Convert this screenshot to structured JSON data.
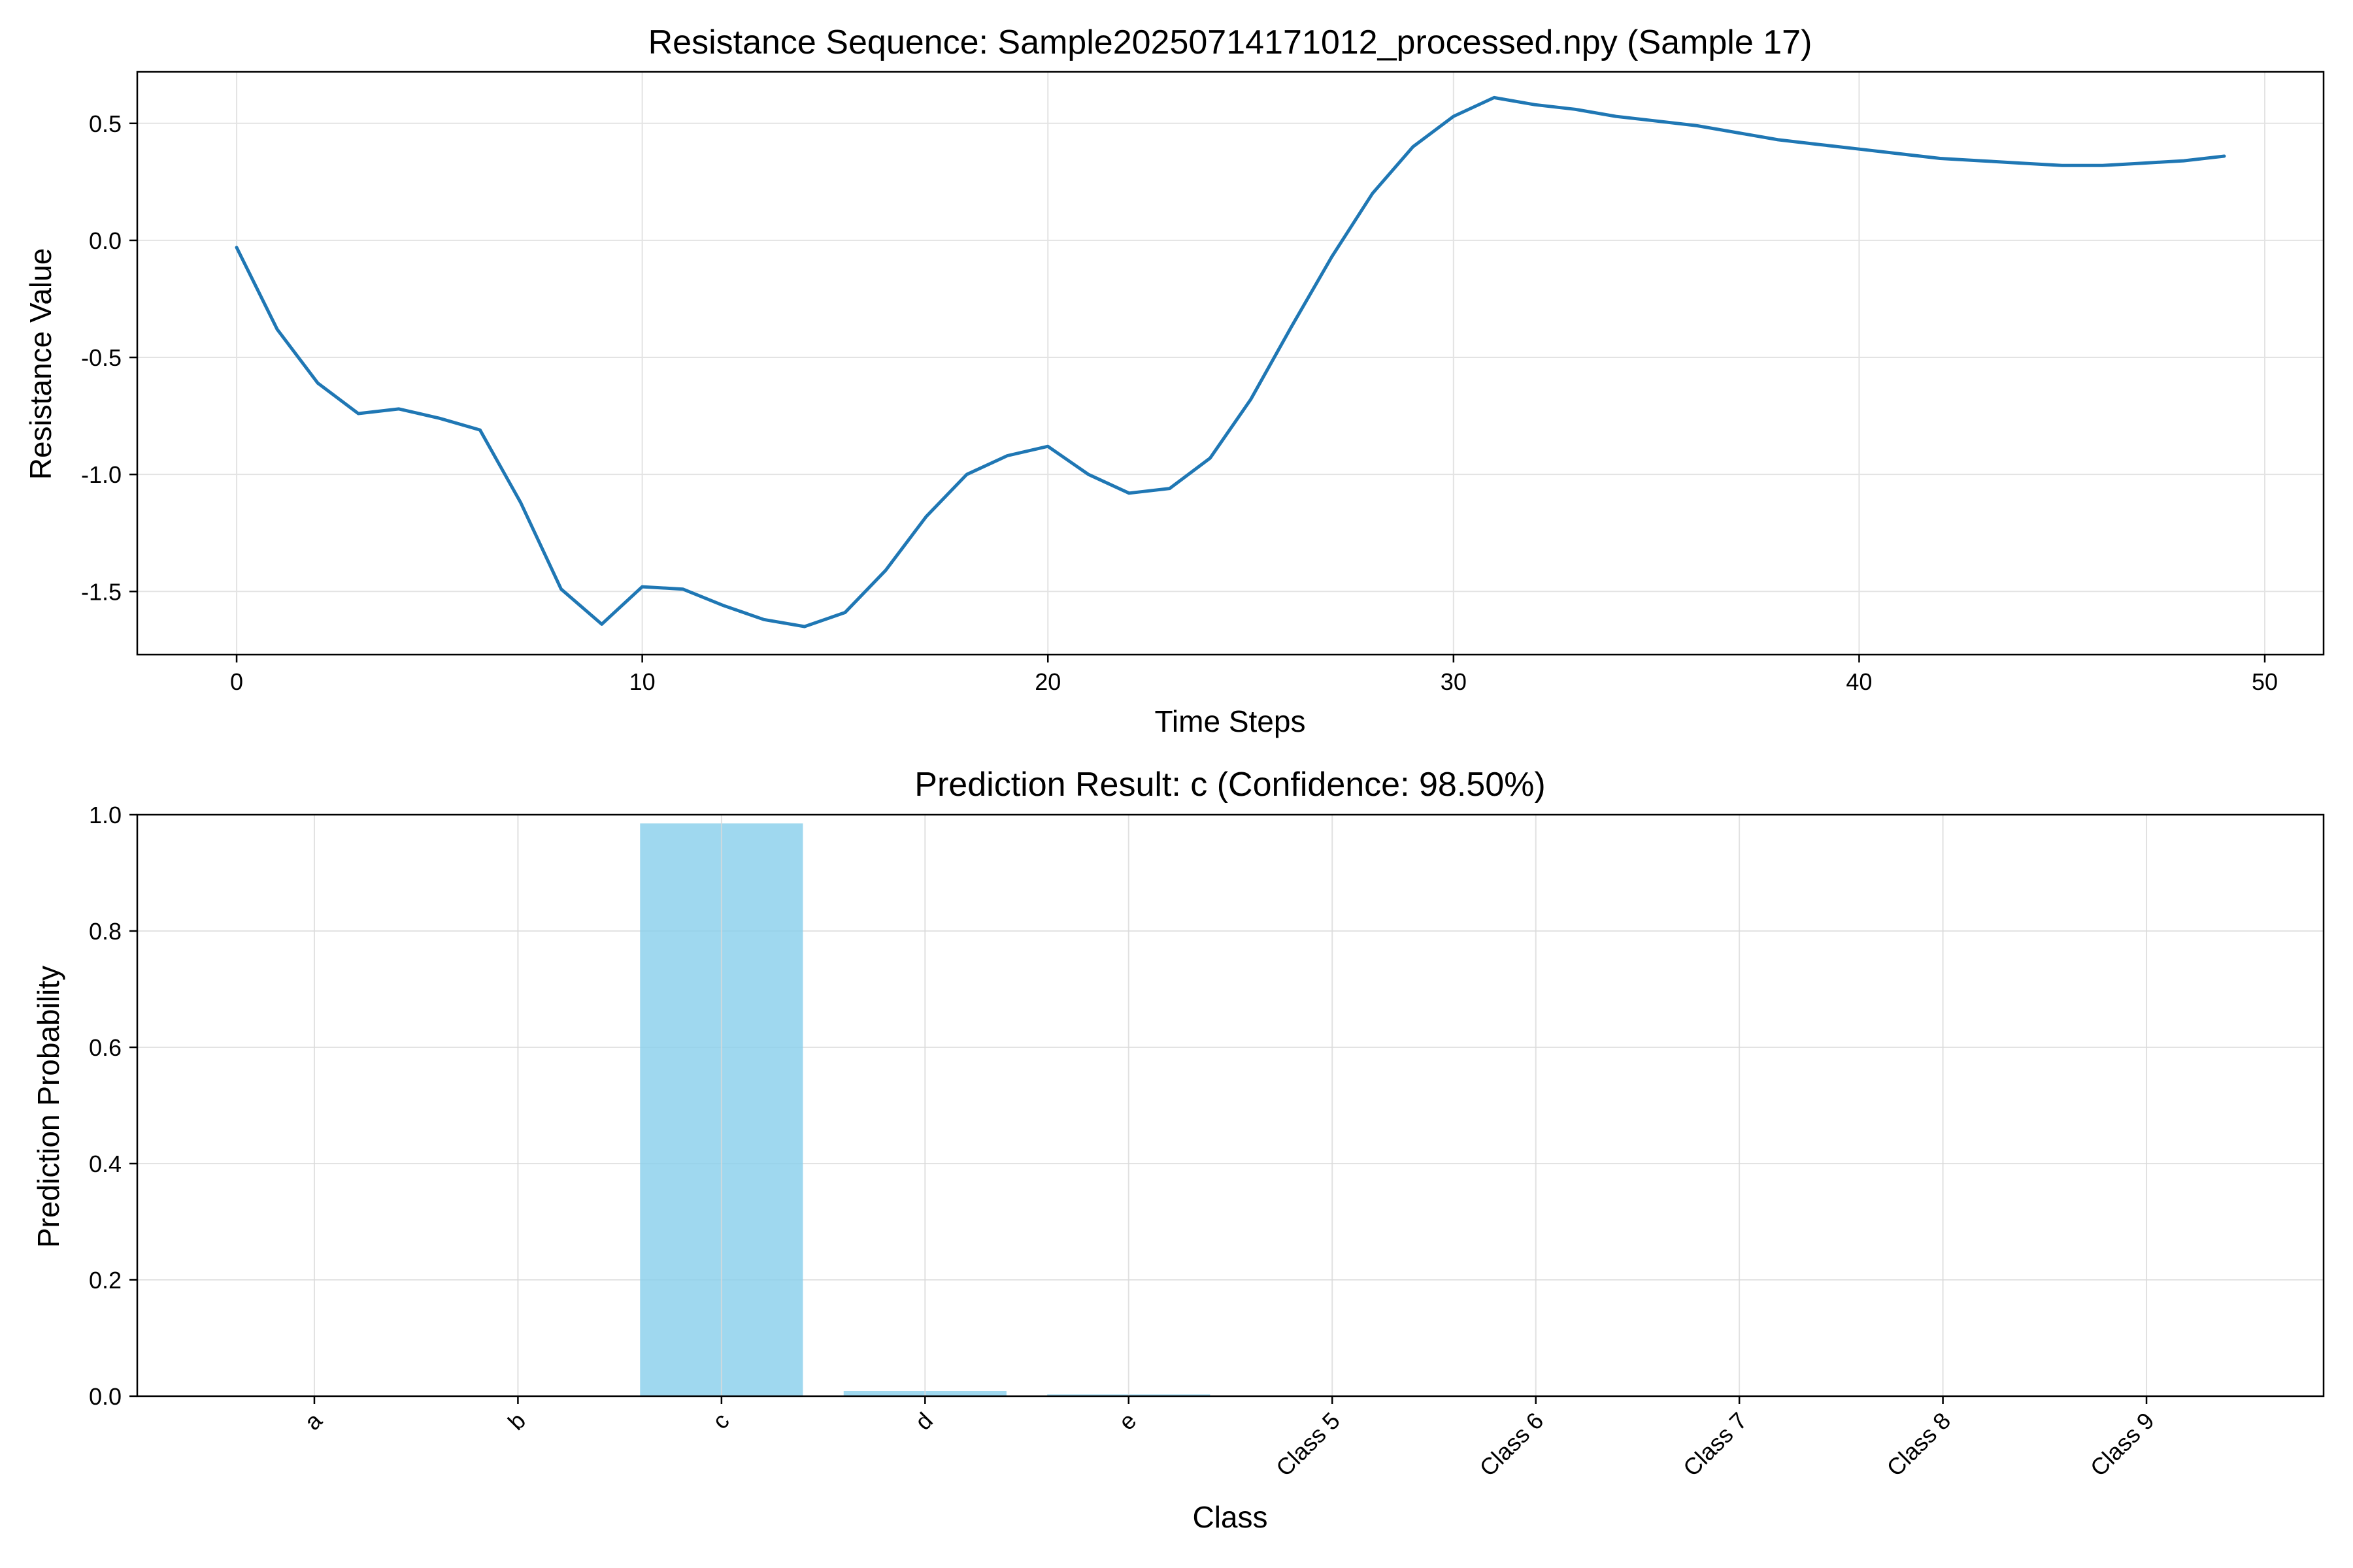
{
  "chart_data": [
    {
      "type": "line",
      "title": "Resistance Sequence: Sample20250714171012_processed.npy (Sample 17)",
      "xlabel": "Time Steps",
      "ylabel": "Resistance Value",
      "xlim": [
        -2.45,
        51.45
      ],
      "ylim": [
        -1.77,
        0.72
      ],
      "xticks": [
        0,
        10,
        20,
        30,
        40,
        50
      ],
      "yticks": [
        0.5,
        0.0,
        -0.5,
        -1.0,
        -1.5
      ],
      "ytick_labels": [
        "0.5",
        "0.0",
        "-0.5",
        "-1.0",
        "-1.5"
      ],
      "grid": true,
      "legend": "none",
      "line_color": "#1f77b4",
      "series": [
        {
          "x": [
            0,
            1,
            2,
            3,
            4,
            5,
            6,
            7,
            8,
            9,
            10,
            11,
            12,
            13,
            14,
            15,
            16,
            17,
            18,
            19,
            20,
            21,
            22,
            23,
            24,
            25,
            26,
            27,
            28,
            29,
            30,
            31,
            32,
            33,
            34,
            35,
            36,
            37,
            38,
            39,
            40,
            41,
            42,
            43,
            44,
            45,
            46,
            47,
            48,
            49
          ],
          "y": [
            -0.03,
            -0.38,
            -0.61,
            -0.74,
            -0.72,
            -0.76,
            -0.81,
            -1.12,
            -1.49,
            -1.64,
            -1.48,
            -1.49,
            -1.56,
            -1.62,
            -1.65,
            -1.59,
            -1.41,
            -1.18,
            -1.0,
            -0.92,
            -0.88,
            -1.0,
            -1.08,
            -1.06,
            -0.93,
            -0.68,
            -0.37,
            -0.07,
            0.2,
            0.4,
            0.53,
            0.61,
            0.58,
            0.56,
            0.53,
            0.51,
            0.49,
            0.46,
            0.43,
            0.41,
            0.39,
            0.37,
            0.35,
            0.34,
            0.33,
            0.32,
            0.32,
            0.33,
            0.34,
            0.36
          ]
        }
      ]
    },
    {
      "type": "bar",
      "title": "Prediction Result: c (Confidence: 98.50%)",
      "xlabel": "Class",
      "ylabel": "Prediction Probability",
      "ylim": [
        0,
        1.0
      ],
      "yticks": [
        0.0,
        0.2,
        0.4,
        0.6,
        0.8,
        1.0
      ],
      "ytick_labels": [
        "0.0",
        "0.2",
        "0.4",
        "0.6",
        "0.8",
        "1.0"
      ],
      "grid": true,
      "legend": "none",
      "bar_color": "#87ceeb",
      "categories": [
        "a",
        "b",
        "c",
        "d",
        "e",
        "Class 5",
        "Class 6",
        "Class 7",
        "Class 8",
        "Class 9"
      ],
      "values": [
        0.0005,
        0.0005,
        0.985,
        0.009,
        0.003,
        0.0,
        0.0,
        0.0,
        0.0,
        0.0
      ]
    }
  ]
}
